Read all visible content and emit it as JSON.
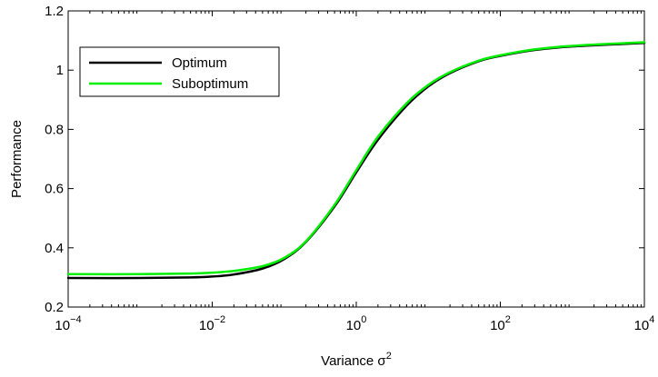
{
  "chart_data": {
    "type": "line",
    "title": "",
    "xlabel": "Variance σ",
    "xlabel_superscript": "2",
    "ylabel": "Performance",
    "xscale": "log",
    "xlim": [
      0.0001,
      10000
    ],
    "ylim": [
      0.2,
      1.2
    ],
    "grid": false,
    "legend_position": "top-left",
    "x_ticks": [
      {
        "base": "10",
        "exp": "−4"
      },
      {
        "base": "10",
        "exp": "−2"
      },
      {
        "base": "10",
        "exp": "0"
      },
      {
        "base": "10",
        "exp": "2"
      },
      {
        "base": "10",
        "exp": "4"
      }
    ],
    "y_tick_labels": [
      "0.2",
      "0.4",
      "0.6",
      "0.8",
      "1",
      "1.2"
    ],
    "x": [
      0.0001,
      0.001,
      0.005,
      0.01,
      0.02,
      0.05,
      0.1,
      0.2,
      0.5,
      1,
      2,
      5,
      10,
      20,
      50,
      100,
      300,
      1000,
      10000
    ],
    "series": [
      {
        "name": "Optimum",
        "color": "#000000",
        "values": [
          0.298,
          0.298,
          0.3,
          0.303,
          0.31,
          0.33,
          0.362,
          0.42,
          0.54,
          0.655,
          0.765,
          0.88,
          0.945,
          0.99,
          1.03,
          1.048,
          1.068,
          1.08,
          1.092
        ]
      },
      {
        "name": "Suboptimum",
        "color": "#00ee00",
        "values": [
          0.311,
          0.311,
          0.313,
          0.316,
          0.322,
          0.338,
          0.366,
          0.422,
          0.545,
          0.662,
          0.775,
          0.888,
          0.95,
          0.993,
          1.032,
          1.05,
          1.07,
          1.082,
          1.094
        ]
      }
    ]
  }
}
